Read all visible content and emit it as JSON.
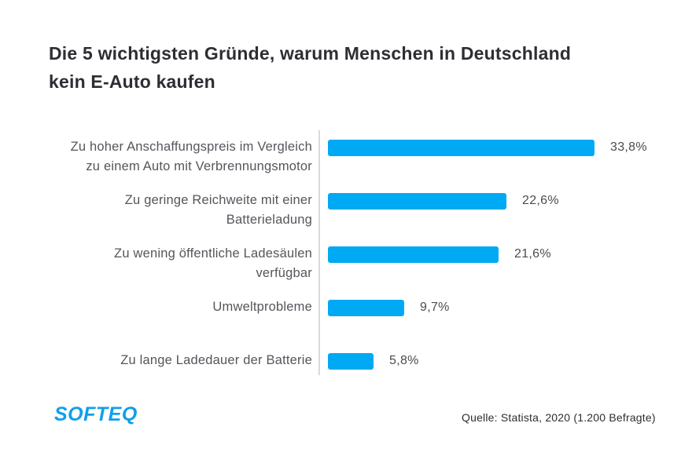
{
  "title": {
    "lines": [
      "Die 5 wichtigsten Gründe, warum Menschen in Deutschland",
      "kein E-Auto kaufen"
    ]
  },
  "chart_data": {
    "type": "bar",
    "orientation": "horizontal",
    "title": "Die 5 wichtigsten Gründe, warum Menschen in Deutschland kein E-Auto kaufen",
    "categories": [
      "Zu hoher Anschaffungspreis im Vergleich zu einem Auto mit Verbrennungsmotor",
      "Zu geringe Reichweite mit einer Batterieladung",
      "Zu wening öffentliche Ladesäulen verfügbar",
      "Umweltprobleme",
      "Zu lange Ladedauer der Batterie"
    ],
    "category_lines": [
      [
        "Zu hoher Anschaffungspreis im Vergleich",
        "zu einem Auto mit Verbrennungsmotor"
      ],
      [
        "Zu geringe Reichweite mit einer",
        "Batterieladung"
      ],
      [
        "Zu wening öffentliche Ladesäulen",
        "verfügbar"
      ],
      [
        "Umweltprobleme"
      ],
      [
        "Zu lange Ladedauer der Batterie"
      ]
    ],
    "values": [
      33.8,
      22.6,
      21.6,
      9.7,
      5.8
    ],
    "value_labels": [
      "33,8%",
      "22,6%",
      "21,6%",
      "9,7%",
      "5,8%"
    ],
    "unit": "%",
    "xlim": [
      0,
      35
    ],
    "grid": false,
    "legend": false,
    "bar_color": "#00a9f3"
  },
  "footer": {
    "logo_text": "SOFTEQ",
    "logo_color": "#109fe9",
    "source": "Quelle: Statista, 2020 (1.200 Befragte)"
  },
  "colors": {
    "background": "#ffffff",
    "title": "#2d2d33",
    "label": "#55555c",
    "value": "#4b4b52",
    "axis": "#d9d9de"
  }
}
